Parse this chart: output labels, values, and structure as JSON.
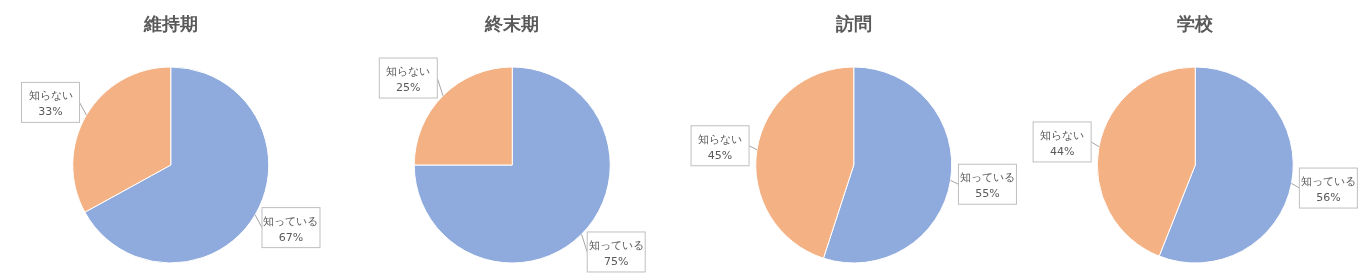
{
  "chart_data": [
    {
      "type": "pie",
      "title": "維持期",
      "categories": [
        "知っている",
        "知らない"
      ],
      "values": [
        67,
        33
      ],
      "colors": [
        "#8faadc",
        "#f4b183"
      ],
      "value_labels": [
        "67%",
        "33%"
      ]
    },
    {
      "type": "pie",
      "title": "終末期",
      "categories": [
        "知っている",
        "知らない"
      ],
      "values": [
        75,
        25
      ],
      "colors": [
        "#8faadc",
        "#f4b183"
      ],
      "value_labels": [
        "75%",
        "25%"
      ]
    },
    {
      "type": "pie",
      "title": "訪問",
      "categories": [
        "知っている",
        "知らない"
      ],
      "values": [
        55,
        45
      ],
      "colors": [
        "#8faadc",
        "#f4b183"
      ],
      "value_labels": [
        "55%",
        "45%"
      ]
    },
    {
      "type": "pie",
      "title": "学校",
      "categories": [
        "知っている",
        "知らない"
      ],
      "values": [
        56,
        44
      ],
      "colors": [
        "#8faadc",
        "#f4b183"
      ],
      "value_labels": [
        "56%",
        "44%"
      ]
    }
  ]
}
